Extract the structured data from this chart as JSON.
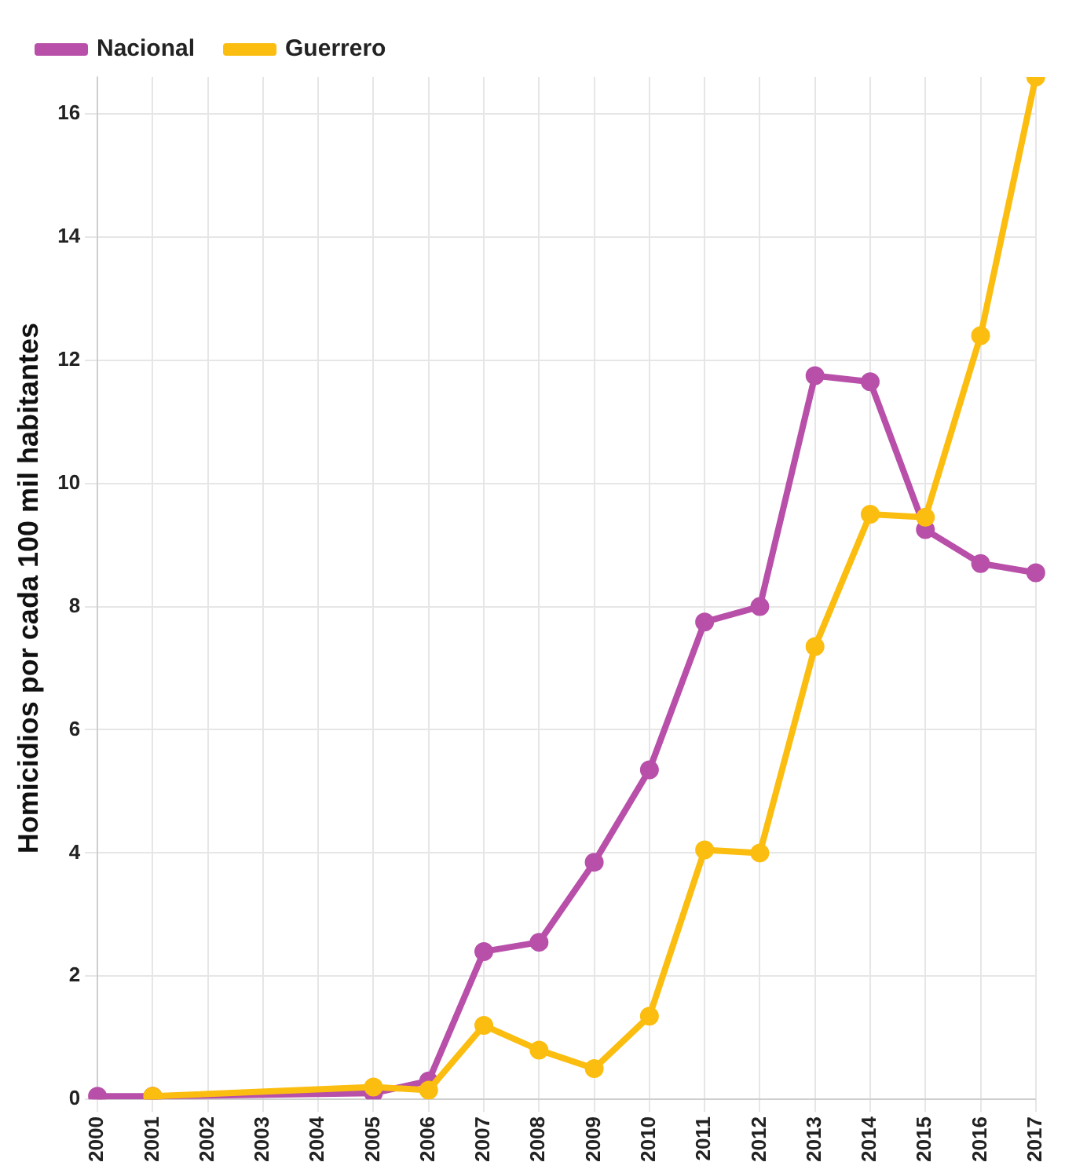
{
  "chart_data": {
    "type": "line",
    "ylabel": "Homicidios por cada 100 mil habitantes",
    "categories": [
      "2000",
      "2001",
      "2002",
      "2003",
      "2004",
      "2005",
      "2006",
      "2007",
      "2008",
      "2009",
      "2010",
      "2011",
      "2012",
      "2013",
      "2014",
      "2015",
      "2016",
      "2017"
    ],
    "series": [
      {
        "name": "Nacional",
        "color": "#b84fa9",
        "values": [
          0.05,
          0.05,
          null,
          null,
          null,
          0.1,
          0.3,
          2.4,
          2.55,
          3.85,
          5.35,
          7.75,
          8.0,
          11.75,
          11.65,
          9.25,
          8.7,
          8.55
        ]
      },
      {
        "name": "Guerrero",
        "color": "#fbbd0f",
        "values": [
          null,
          0.05,
          null,
          null,
          null,
          0.2,
          0.15,
          1.2,
          0.8,
          0.5,
          1.35,
          4.05,
          4.0,
          7.35,
          9.5,
          9.45,
          12.4,
          16.6
        ]
      }
    ],
    "ylim": [
      0,
      16.6
    ],
    "yticks": [
      0,
      2,
      4,
      6,
      8,
      10,
      12,
      14,
      16
    ],
    "grid": true,
    "legend": "top left",
    "marker": "circle",
    "line_style": "solid"
  }
}
